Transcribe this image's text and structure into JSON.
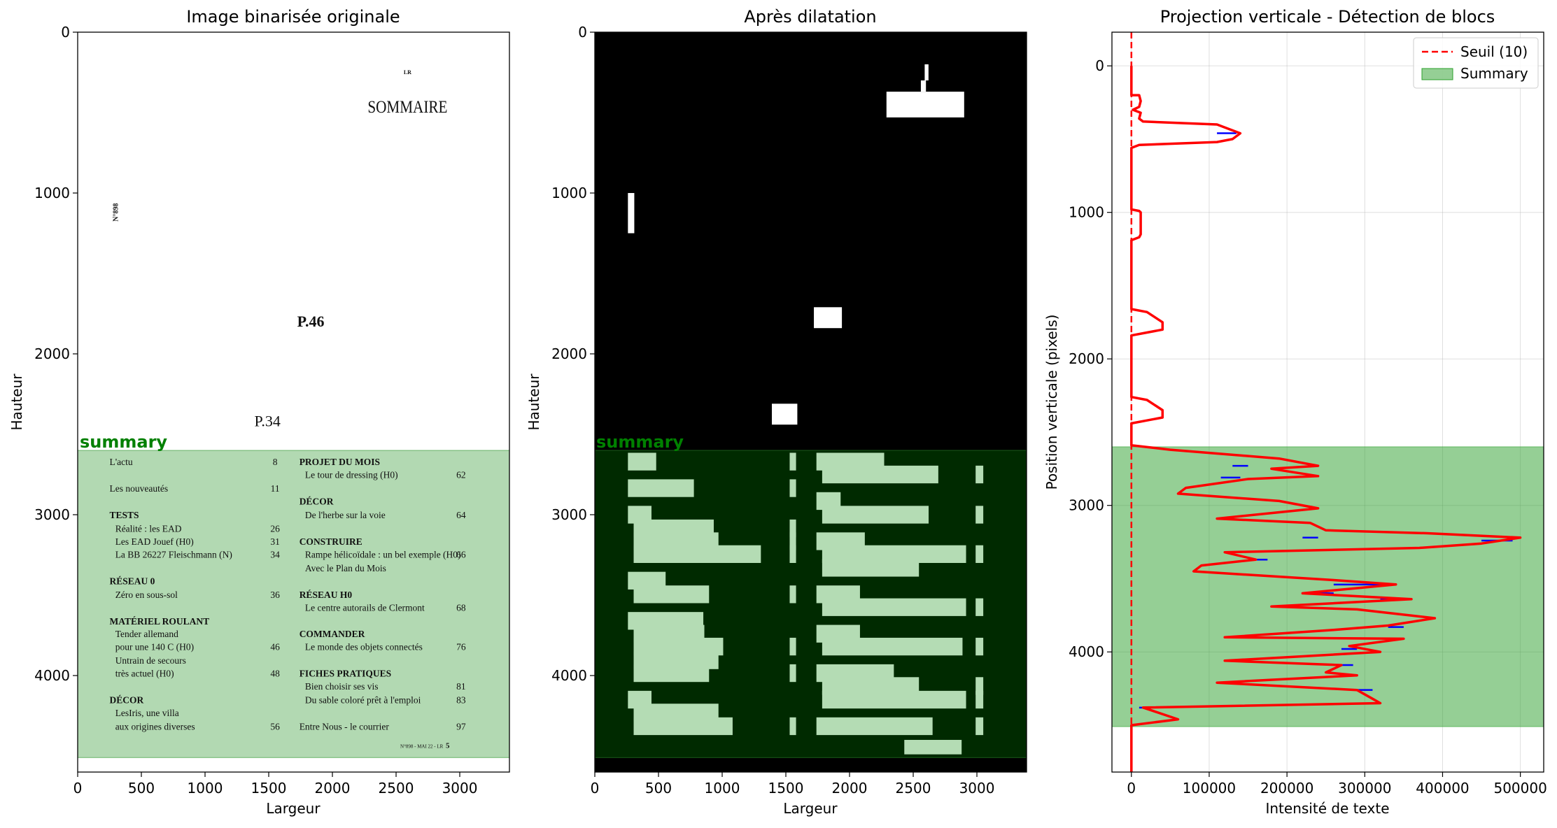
{
  "chart_data": [
    {
      "type": "image",
      "title": "Image binarisée originale",
      "xlabel": "Largeur",
      "ylabel": "Hauteur",
      "xlim": [
        0,
        3390
      ],
      "ylim": [
        4600,
        0
      ],
      "xticks": [
        0,
        500,
        1000,
        1500,
        2000,
        2500,
        3000
      ],
      "yticks": [
        0,
        1000,
        2000,
        3000,
        4000
      ],
      "region": {
        "label": "summary",
        "y0": 2600,
        "y1": 4510,
        "color": "#008000"
      },
      "page_text": {
        "header_small": "LR",
        "heading": "SOMMAIRE",
        "issue_vertical": "N°898",
        "p46": "P.46",
        "p34": "P.34",
        "footer": "N°898 - MAI 22 - LR",
        "footer_num": "5",
        "left_column": [
          {
            "text": "L'actu",
            "page": "8",
            "y": 2670,
            "bold": false
          },
          {
            "text": "Les nouveautés",
            "page": "11",
            "y": 2835,
            "bold": false
          },
          {
            "text": "TESTS",
            "page": "",
            "y": 3000,
            "bold": true
          },
          {
            "text": "Réalité : les EAD",
            "page": "26",
            "y": 3085,
            "bold": false,
            "indent": true
          },
          {
            "text": "Les EAD Jouef (H0)",
            "page": "31",
            "y": 3165,
            "bold": false,
            "indent": true
          },
          {
            "text": "La BB 26227 Fleischmann (N)",
            "page": "34",
            "y": 3245,
            "bold": false,
            "indent": true
          },
          {
            "text": "RÉSEAU 0",
            "page": "",
            "y": 3410,
            "bold": true
          },
          {
            "text": "Zéro en sous-sol",
            "page": "36",
            "y": 3495,
            "bold": false,
            "indent": true
          },
          {
            "text": "MATÉRIEL ROULANT",
            "page": "",
            "y": 3660,
            "bold": true
          },
          {
            "text": "Tender allemand",
            "page": "",
            "y": 3740,
            "bold": false,
            "indent": true
          },
          {
            "text": "pour une 140 C (H0)",
            "page": "46",
            "y": 3820,
            "bold": false,
            "indent": true
          },
          {
            "text": "Untrain de secours",
            "page": "",
            "y": 3905,
            "bold": false,
            "indent": true
          },
          {
            "text": "très actuel (H0)",
            "page": "48",
            "y": 3985,
            "bold": false,
            "indent": true
          },
          {
            "text": "DÉCOR",
            "page": "",
            "y": 4150,
            "bold": true
          },
          {
            "text": "LesIris, une villa",
            "page": "",
            "y": 4230,
            "bold": false,
            "indent": true
          },
          {
            "text": "aux origines diverses",
            "page": "56",
            "y": 4315,
            "bold": false,
            "indent": true
          }
        ],
        "right_column": [
          {
            "text": "PROJET DU MOIS",
            "page": "",
            "y": 2670,
            "bold": true
          },
          {
            "text": "Le tour de dressing (H0)",
            "page": "62",
            "y": 2750,
            "bold": false,
            "indent": true
          },
          {
            "text": "DÉCOR",
            "page": "",
            "y": 2915,
            "bold": true
          },
          {
            "text": "De l'herbe sur la voie",
            "page": "64",
            "y": 3000,
            "bold": false,
            "indent": true
          },
          {
            "text": "CONSTRUIRE",
            "page": "",
            "y": 3165,
            "bold": true
          },
          {
            "text": "Rampe hélicoïdale : un bel exemple (H0)",
            "page": "66",
            "y": 3245,
            "bold": false,
            "indent": true
          },
          {
            "text": "Avec le Plan du Mois",
            "page": "",
            "y": 3330,
            "bold": false,
            "indent": true
          },
          {
            "text": "RÉSEAU H0",
            "page": "",
            "y": 3495,
            "bold": true
          },
          {
            "text": "Le centre autorails de Clermont",
            "page": "68",
            "y": 3575,
            "bold": false,
            "indent": true
          },
          {
            "text": "COMMANDER",
            "page": "",
            "y": 3740,
            "bold": true
          },
          {
            "text": "Le monde des objets connectés",
            "page": "76",
            "y": 3820,
            "bold": false,
            "indent": true
          },
          {
            "text": "FICHES PRATIQUES",
            "page": "",
            "y": 3985,
            "bold": true
          },
          {
            "text": "Bien choisir ses vis",
            "page": "81",
            "y": 4065,
            "bold": false,
            "indent": true
          },
          {
            "text": "Du sable coloré prêt à l'emploi",
            "page": "83",
            "y": 4150,
            "bold": false,
            "indent": true
          },
          {
            "text": "Entre Nous - le courrier",
            "page": "97",
            "y": 4315,
            "bold": false
          }
        ]
      }
    },
    {
      "type": "image",
      "title": "Après dilatation",
      "xlabel": "Largeur",
      "ylabel": "Hauteur",
      "xlim": [
        0,
        3390
      ],
      "ylim": [
        4600,
        0
      ],
      "xticks": [
        0,
        500,
        1000,
        1500,
        2000,
        2500,
        3000
      ],
      "yticks": [
        0,
        1000,
        2000,
        3000,
        4000
      ],
      "region": {
        "label": "summary",
        "y0": 2600,
        "y1": 4510,
        "color": "#008000"
      }
    },
    {
      "type": "line",
      "title": "Projection verticale - Détection de blocs",
      "xlabel": "Intensité de texte",
      "ylabel": "Position verticale (pixels)",
      "xlim": [
        -25000,
        530000
      ],
      "ylim": [
        4820,
        -230
      ],
      "xticks": [
        0,
        100000,
        200000,
        300000,
        400000,
        500000
      ],
      "yticks": [
        0,
        1000,
        2000,
        3000,
        4000
      ],
      "grid": true,
      "legend": {
        "position": "top-right",
        "entries": [
          "Seuil (10)",
          "Summary"
        ]
      },
      "threshold": {
        "name": "Seuil (10)",
        "value": 10,
        "color": "#ff0000"
      },
      "summary_band": {
        "name": "Summary",
        "y0": 2600,
        "y1": 4510,
        "color": "#2ca02c"
      },
      "series": [
        {
          "color": "#ff0000",
          "points": [
            [
              0,
              0
            ],
            [
              0,
              200
            ],
            [
              10000,
              200
            ],
            [
              12000,
              240
            ],
            [
              10000,
              280
            ],
            [
              2000,
              300
            ],
            [
              12000,
              320
            ],
            [
              10000,
              360
            ],
            [
              15000,
              380
            ],
            [
              110000,
              400
            ],
            [
              140000,
              460
            ],
            [
              130000,
              500
            ],
            [
              110000,
              520
            ],
            [
              10000,
              540
            ],
            [
              0,
              560
            ],
            [
              0,
              980
            ],
            [
              10000,
              990
            ],
            [
              12000,
              1000
            ],
            [
              12000,
              1150
            ],
            [
              10000,
              1170
            ],
            [
              0,
              1190
            ],
            [
              0,
              1660
            ],
            [
              20000,
              1680
            ],
            [
              40000,
              1750
            ],
            [
              40000,
              1800
            ],
            [
              20000,
              1820
            ],
            [
              0,
              1840
            ],
            [
              0,
              2260
            ],
            [
              20000,
              2280
            ],
            [
              40000,
              2350
            ],
            [
              40000,
              2400
            ],
            [
              20000,
              2420
            ],
            [
              0,
              2440
            ],
            [
              0,
              2590
            ],
            [
              50000,
              2620
            ],
            [
              190000,
              2680
            ],
            [
              240000,
              2730
            ],
            [
              180000,
              2750
            ],
            [
              240000,
              2800
            ],
            [
              150000,
              2820
            ],
            [
              70000,
              2880
            ],
            [
              60000,
              2920
            ],
            [
              190000,
              2970
            ],
            [
              240000,
              3020
            ],
            [
              110000,
              3090
            ],
            [
              230000,
              3120
            ],
            [
              250000,
              3170
            ],
            [
              380000,
              3190
            ],
            [
              500000,
              3220
            ],
            [
              450000,
              3260
            ],
            [
              370000,
              3290
            ],
            [
              120000,
              3320
            ],
            [
              160000,
              3370
            ],
            [
              90000,
              3410
            ],
            [
              80000,
              3450
            ],
            [
              260000,
              3510
            ],
            [
              340000,
              3540
            ],
            [
              220000,
              3600
            ],
            [
              360000,
              3640
            ],
            [
              180000,
              3690
            ],
            [
              290000,
              3710
            ],
            [
              390000,
              3770
            ],
            [
              330000,
              3820
            ],
            [
              260000,
              3850
            ],
            [
              120000,
              3900
            ],
            [
              350000,
              3910
            ],
            [
              280000,
              3960
            ],
            [
              320000,
              4000
            ],
            [
              120000,
              4060
            ],
            [
              270000,
              4090
            ],
            [
              250000,
              4140
            ],
            [
              290000,
              4160
            ],
            [
              110000,
              4210
            ],
            [
              290000,
              4260
            ],
            [
              310000,
              4320
            ],
            [
              320000,
              4350
            ],
            [
              15000,
              4380
            ],
            [
              60000,
              4460
            ],
            [
              30000,
              4480
            ],
            [
              0,
              4500
            ],
            [
              0,
              4820
            ]
          ]
        },
        {
          "name": "",
          "color": "#0000ff",
          "segments": [
            [
              110000,
              135000,
              460
            ],
            [
              130000,
              150000,
              2730
            ],
            [
              115000,
              140000,
              2810
            ],
            [
              110000,
              130000,
              3090
            ],
            [
              220000,
              240000,
              3220
            ],
            [
              450000,
              490000,
              3240
            ],
            [
              120000,
              140000,
              3320
            ],
            [
              160000,
              175000,
              3370
            ],
            [
              260000,
              340000,
              3540
            ],
            [
              220000,
              260000,
              3600
            ],
            [
              320000,
              350000,
              3640
            ],
            [
              330000,
              350000,
              3830
            ],
            [
              120000,
              140000,
              3900
            ],
            [
              270000,
              290000,
              3980
            ],
            [
              120000,
              135000,
              4060
            ],
            [
              270000,
              285000,
              4090
            ],
            [
              110000,
              130000,
              4210
            ],
            [
              290000,
              310000,
              4260
            ],
            [
              10000,
              25000,
              4380
            ]
          ]
        }
      ]
    }
  ]
}
